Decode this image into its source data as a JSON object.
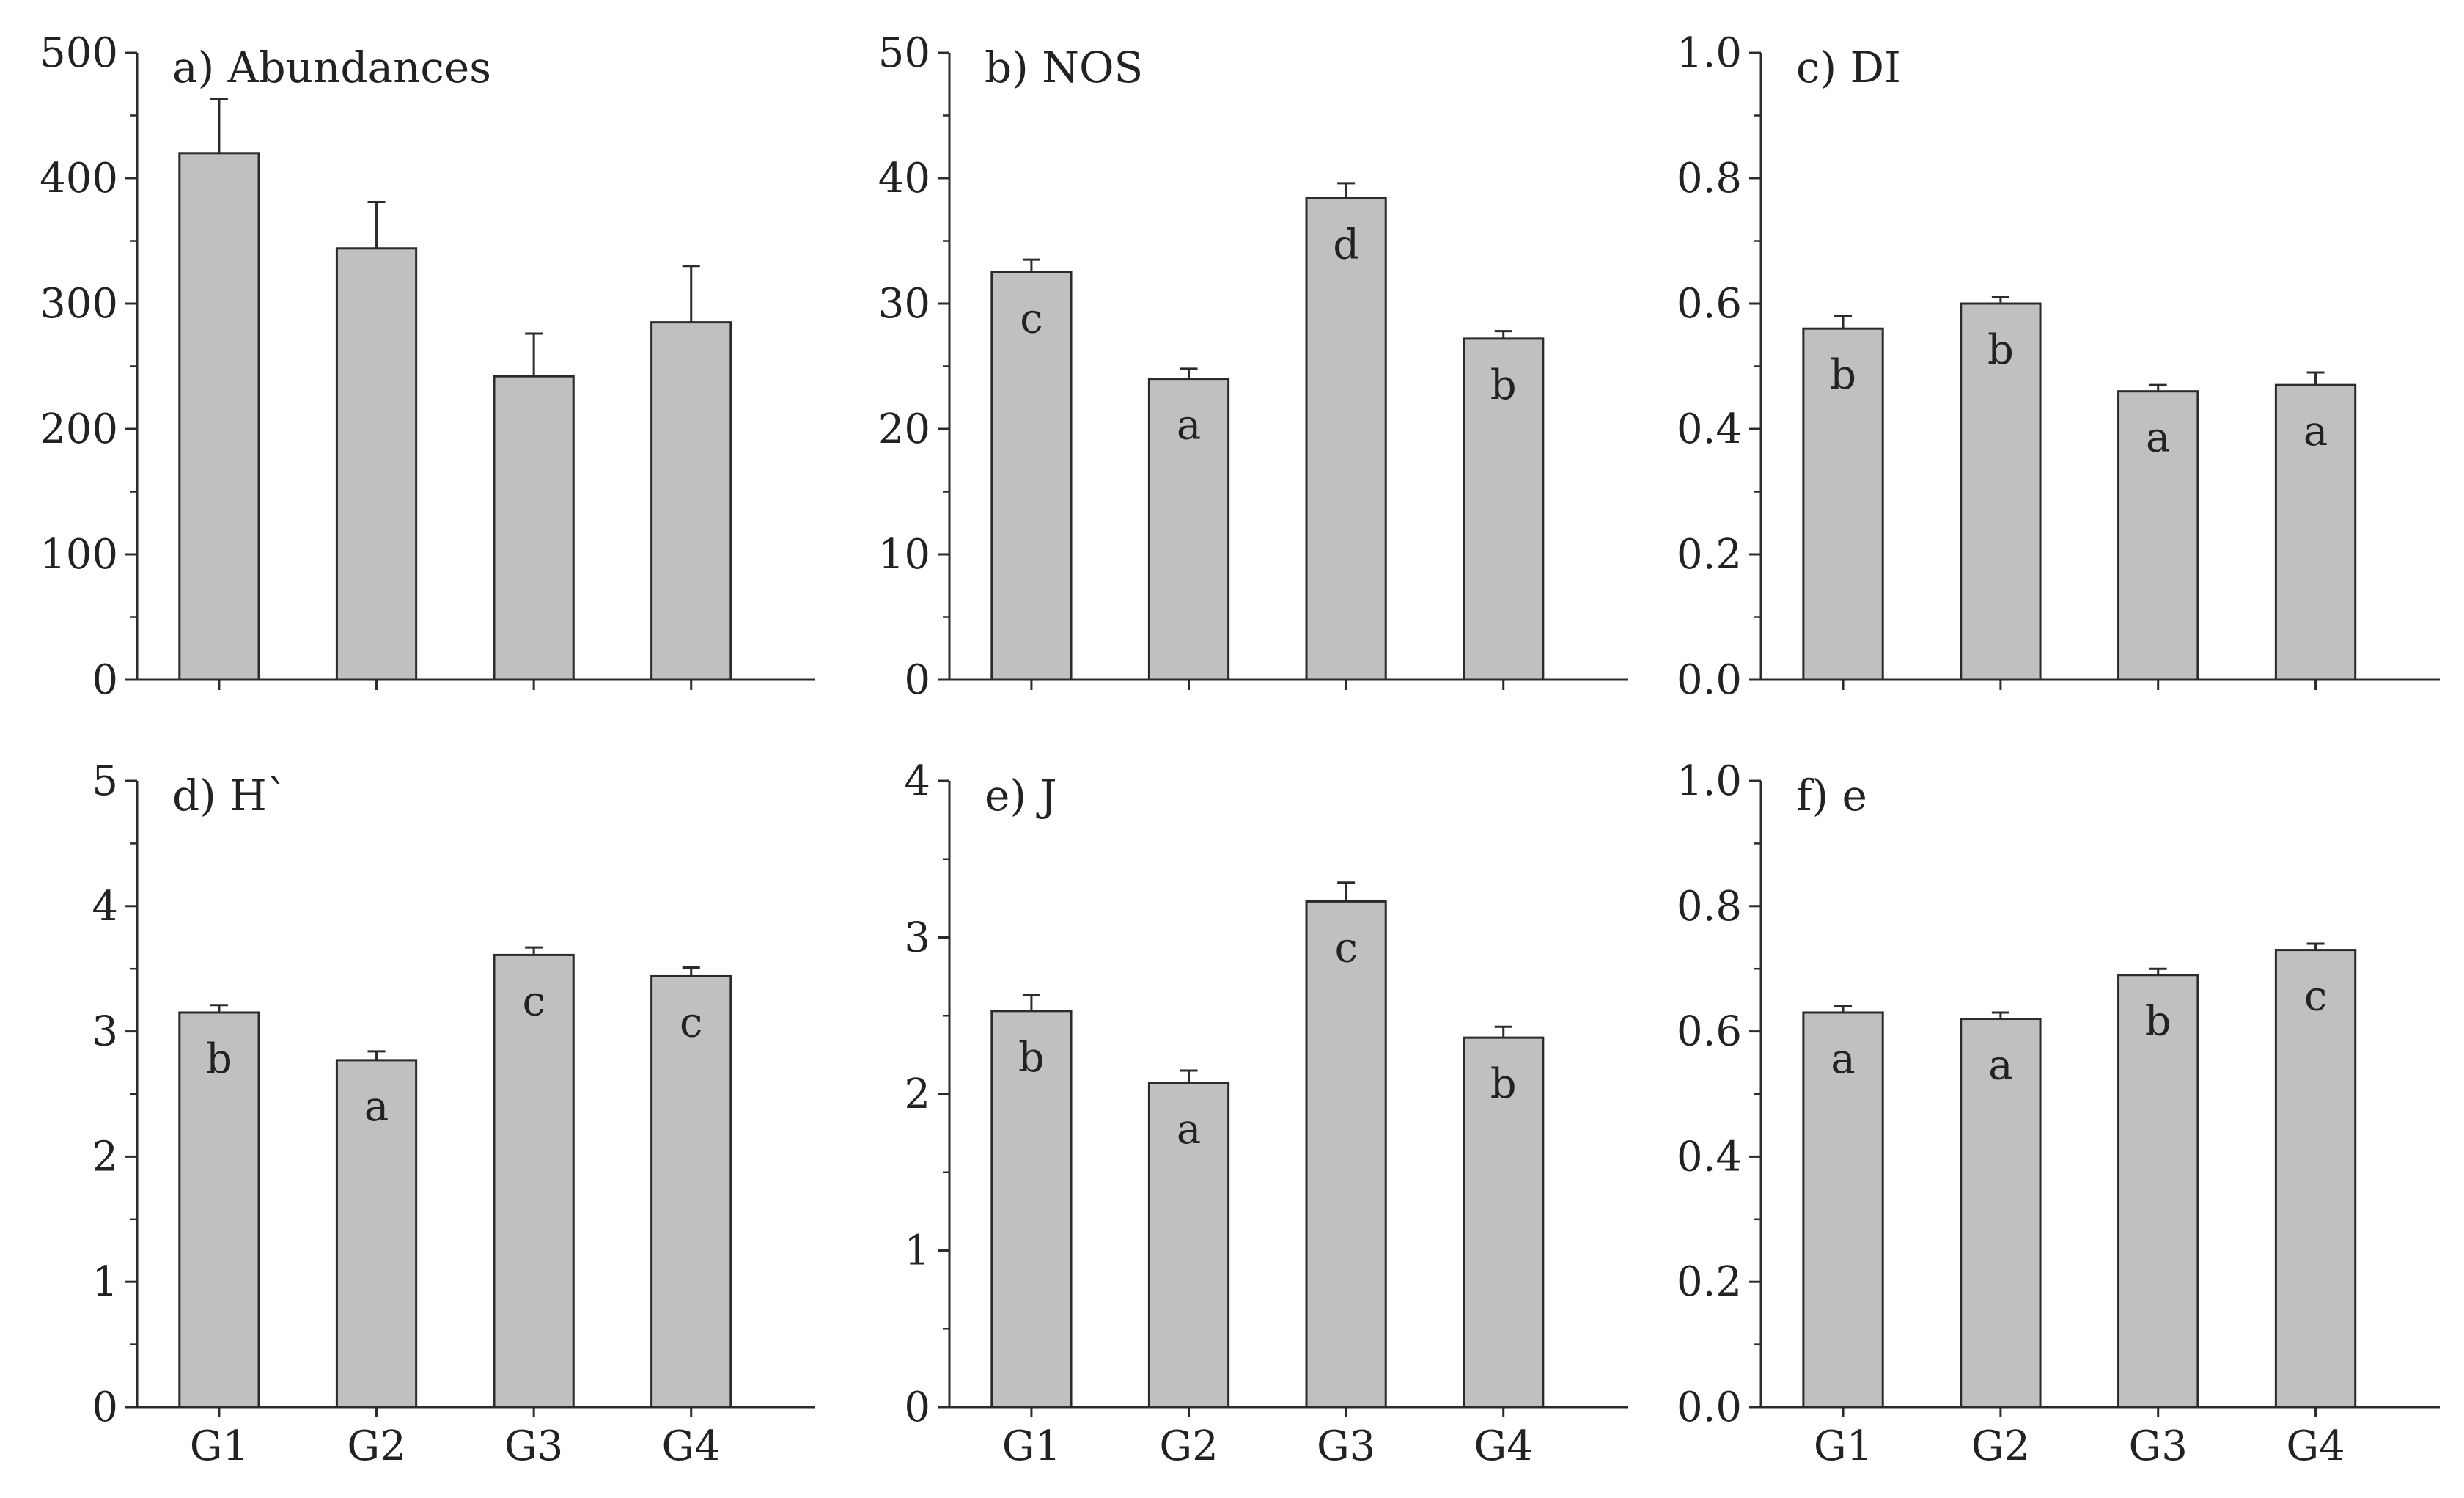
{
  "chart_data": [
    {
      "id": "a",
      "type": "bar",
      "title": "a) Abundances",
      "categories": [
        "G1",
        "G2",
        "G3",
        "G4"
      ],
      "values": [
        420,
        344,
        242,
        285
      ],
      "errors": [
        43,
        37,
        34,
        45
      ],
      "letters": [
        "",
        "",
        "",
        ""
      ],
      "ylim": [
        0,
        500
      ],
      "yticks": [
        0,
        100,
        200,
        300,
        400,
        500
      ],
      "ytick_labels": [
        "0",
        "100",
        "200",
        "300",
        "400",
        "500"
      ],
      "show_xlabels": false
    },
    {
      "id": "b",
      "type": "bar",
      "title": "b) NOS",
      "categories": [
        "G1",
        "G2",
        "G3",
        "G4"
      ],
      "values": [
        32.5,
        24.0,
        38.4,
        27.2
      ],
      "errors": [
        1.0,
        0.8,
        1.2,
        0.6
      ],
      "letters": [
        "c",
        "a",
        "d",
        "b"
      ],
      "ylim": [
        0,
        50
      ],
      "yticks": [
        0,
        10,
        20,
        30,
        40,
        50
      ],
      "ytick_labels": [
        "0",
        "10",
        "20",
        "30",
        "40",
        "50"
      ],
      "show_xlabels": false
    },
    {
      "id": "c",
      "type": "bar",
      "title": "c) DI",
      "categories": [
        "G1",
        "G2",
        "G3",
        "G4"
      ],
      "values": [
        0.56,
        0.6,
        0.46,
        0.47
      ],
      "errors": [
        0.02,
        0.01,
        0.01,
        0.02
      ],
      "letters": [
        "b",
        "b",
        "a",
        "a"
      ],
      "ylim": [
        0,
        1.0
      ],
      "yticks": [
        0,
        0.2,
        0.4,
        0.6,
        0.8,
        1.0
      ],
      "ytick_labels": [
        "0.0",
        "0.2",
        "0.4",
        "0.6",
        "0.8",
        "1.0"
      ],
      "show_xlabels": false
    },
    {
      "id": "d",
      "type": "bar",
      "title": "d) H`",
      "categories": [
        "G1",
        "G2",
        "G3",
        "G4"
      ],
      "values": [
        3.15,
        2.77,
        3.61,
        3.44
      ],
      "errors": [
        0.06,
        0.07,
        0.06,
        0.07
      ],
      "letters": [
        "b",
        "a",
        "c",
        "c"
      ],
      "ylim": [
        0,
        5
      ],
      "yticks": [
        0,
        1,
        2,
        3,
        4,
        5
      ],
      "ytick_labels": [
        "0",
        "1",
        "2",
        "3",
        "4",
        "5"
      ],
      "show_xlabels": true
    },
    {
      "id": "e",
      "type": "bar",
      "title": "e) J",
      "categories": [
        "G1",
        "G2",
        "G3",
        "G4"
      ],
      "values": [
        2.53,
        2.07,
        3.23,
        2.36
      ],
      "errors": [
        0.1,
        0.08,
        0.12,
        0.07
      ],
      "letters": [
        "b",
        "a",
        "c",
        "b"
      ],
      "ylim": [
        0,
        4
      ],
      "yticks": [
        0,
        1,
        2,
        3,
        4
      ],
      "ytick_labels": [
        "0",
        "1",
        "2",
        "3",
        "4"
      ],
      "show_xlabels": true
    },
    {
      "id": "f",
      "type": "bar",
      "title": "f) e",
      "categories": [
        "G1",
        "G2",
        "G3",
        "G4"
      ],
      "values": [
        0.63,
        0.62,
        0.69,
        0.73
      ],
      "errors": [
        0.01,
        0.01,
        0.01,
        0.01
      ],
      "letters": [
        "a",
        "a",
        "b",
        "c"
      ],
      "ylim": [
        0,
        1.0
      ],
      "yticks": [
        0,
        0.2,
        0.4,
        0.6,
        0.8,
        1.0
      ],
      "ytick_labels": [
        "0.0",
        "0.2",
        "0.4",
        "0.6",
        "0.8",
        "1.0"
      ],
      "show_xlabels": true
    }
  ]
}
